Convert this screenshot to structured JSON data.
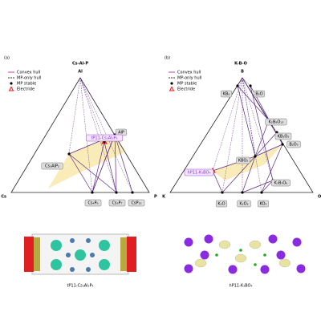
{
  "panels": [
    {
      "label": "(a)",
      "title": "Cs-Al-P",
      "vertices": [
        "Al",
        "Cs",
        "P"
      ],
      "legend": [
        "Convex hull",
        "MP-only hull",
        "MP stable",
        "Electride"
      ],
      "phases": [
        "AlP",
        "tP11-Cs₃Al₂P₄",
        "Cs₃AlP₂",
        "Cs₄P₆",
        "Cs₃P₇",
        "CsP₁₅"
      ],
      "caption": "tP11-Cs₃Al₂P₄"
    },
    {
      "label": "(b)",
      "title": "K-B-O",
      "vertices": [
        "B",
        "K",
        "O"
      ],
      "legend": [
        "Convex hull",
        "MP-only hull",
        "MP stable",
        "Electride"
      ],
      "phases": [
        "KB₆",
        "B₂O",
        "K₂B₈O₁₃",
        "KB₃O₅",
        "B₂O₃",
        "KBO₂",
        "hP11-K₃BO₄",
        "K₃B₃O₆",
        "K₂O",
        "K₂O₂",
        "KO₂"
      ],
      "caption": "hP11-K₃BO₄"
    }
  ]
}
